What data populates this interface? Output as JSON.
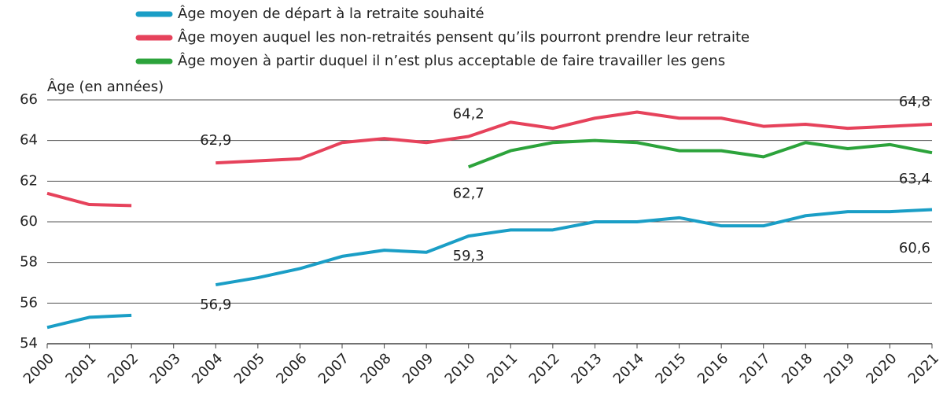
{
  "chart_data": {
    "type": "line",
    "y_label": "Âge (en années)",
    "categories": [
      "2000",
      "2001",
      "2002",
      "2003",
      "2004",
      "2005",
      "2006",
      "2007",
      "2008",
      "2009",
      "2010",
      "2011",
      "2012",
      "2013",
      "2014",
      "2015",
      "2016",
      "2017",
      "2018",
      "2019",
      "2020",
      "2021"
    ],
    "series": [
      {
        "name": "Âge moyen de départ à la retraite souhaité",
        "color": "#1a9ec6",
        "values": [
          54.8,
          55.3,
          55.4,
          null,
          56.9,
          57.25,
          57.7,
          58.3,
          58.6,
          58.5,
          59.3,
          59.6,
          59.6,
          60.0,
          60.0,
          60.2,
          59.8,
          59.8,
          60.3,
          60.5,
          60.5,
          60.6
        ],
        "value_labels": [
          null,
          null,
          null,
          null,
          "56,9",
          null,
          null,
          null,
          null,
          null,
          "59,3",
          null,
          null,
          null,
          null,
          null,
          null,
          null,
          null,
          null,
          null,
          "60,6"
        ]
      },
      {
        "name": "Âge moyen auquel les non-retraités pensent qu’ils pourront prendre leur retraite",
        "color": "#e6425b",
        "values": [
          61.4,
          60.85,
          60.8,
          null,
          62.9,
          63.0,
          63.1,
          63.9,
          64.1,
          63.9,
          64.2,
          64.9,
          64.6,
          65.1,
          65.4,
          65.1,
          65.1,
          64.7,
          64.8,
          64.6,
          64.7,
          64.8
        ],
        "value_labels": [
          null,
          null,
          null,
          null,
          "62,9",
          null,
          null,
          null,
          null,
          null,
          "64,2",
          null,
          null,
          null,
          null,
          null,
          null,
          null,
          null,
          null,
          null,
          "64,8"
        ]
      },
      {
        "name": "Âge moyen à partir duquel il n’est plus acceptable de faire travailler les gens",
        "color": "#2ca33b",
        "values": [
          null,
          null,
          null,
          null,
          null,
          null,
          null,
          null,
          null,
          null,
          62.7,
          63.5,
          63.9,
          64.0,
          63.9,
          63.5,
          63.5,
          63.2,
          63.9,
          63.6,
          63.8,
          63.4
        ],
        "value_labels": [
          null,
          null,
          null,
          null,
          null,
          null,
          null,
          null,
          null,
          null,
          "62,7",
          null,
          null,
          null,
          null,
          null,
          null,
          null,
          null,
          null,
          null,
          "63,4"
        ]
      }
    ],
    "ylim": [
      54,
      66
    ],
    "yticks": [
      54,
      56,
      58,
      60,
      62,
      64,
      66
    ],
    "grid": true
  }
}
